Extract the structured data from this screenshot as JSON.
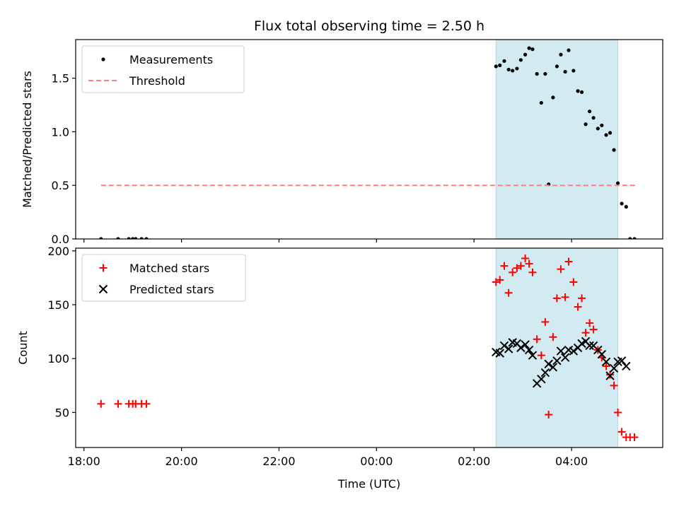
{
  "chart_data": {
    "type": "scatter",
    "title": "Flux total observing time = 2.50 h",
    "xlabel": "Time (UTC)",
    "x_unit": "hours since 00:00 UTC",
    "xlim": [
      -6.17,
      5.87
    ],
    "xticks": [
      {
        "value": -6,
        "label": "18:00"
      },
      {
        "value": -4,
        "label": "20:00"
      },
      {
        "value": -2,
        "label": "22:00"
      },
      {
        "value": 0,
        "label": "00:00"
      },
      {
        "value": 2,
        "label": "02:00"
      },
      {
        "value": 4,
        "label": "04:00"
      }
    ],
    "observing_window": {
      "start": 2.45,
      "end": 4.95,
      "color": "#add8e6"
    },
    "panels": [
      {
        "ylabel": "Matched/Predicted stars",
        "ylim": [
          0,
          1.86
        ],
        "yticks": [
          0.0,
          0.5,
          1.0,
          1.5
        ],
        "ytick_labels": [
          "0.0",
          "0.5",
          "1.0",
          "1.5"
        ],
        "legend_position": "upper-left",
        "series": [
          {
            "name": "Measurements",
            "marker": "dot",
            "color": "#000000",
            "x": [
              -5.65,
              -5.3,
              -5.08,
              -5.0,
              -4.94,
              -4.82,
              -4.72,
              2.45,
              2.53,
              2.62,
              2.71,
              2.79,
              2.88,
              2.96,
              3.05,
              3.13,
              3.2,
              3.29,
              3.38,
              3.46,
              3.53,
              3.62,
              3.7,
              3.78,
              3.87,
              3.94,
              4.04,
              4.13,
              4.21,
              4.29,
              4.37,
              4.45,
              4.54,
              4.62,
              4.71,
              4.79,
              4.87,
              4.95,
              5.03,
              5.12,
              5.2,
              5.29
            ],
            "y": [
              0.0,
              0.0,
              0.0,
              0.0,
              0.0,
              0.0,
              0.0,
              1.61,
              1.62,
              1.66,
              1.58,
              1.57,
              1.59,
              1.67,
              1.72,
              1.78,
              1.77,
              1.54,
              1.27,
              1.54,
              0.51,
              1.32,
              1.61,
              1.72,
              1.56,
              1.76,
              1.57,
              1.38,
              1.37,
              1.07,
              1.19,
              1.13,
              1.03,
              1.06,
              0.97,
              0.99,
              0.83,
              0.52,
              0.33,
              0.3,
              0.0,
              0.0
            ]
          },
          {
            "name": "Threshold",
            "marker": "dashed-line",
            "color": "#ff7f7f",
            "x": [
              -5.65,
              5.3
            ],
            "y": [
              0.5,
              0.5
            ]
          }
        ]
      },
      {
        "ylabel": "Count",
        "ylim": [
          17.5,
          202.5
        ],
        "yticks": [
          50,
          100,
          150,
          200
        ],
        "ytick_labels": [
          "50",
          "100",
          "150",
          "200"
        ],
        "legend_position": "upper-left",
        "series": [
          {
            "name": "Matched stars",
            "marker": "plus",
            "color": "#ff0000",
            "x": [
              -5.65,
              -5.3,
              -5.08,
              -5.0,
              -4.94,
              -4.82,
              -4.72,
              2.45,
              2.53,
              2.62,
              2.71,
              2.79,
              2.88,
              2.96,
              3.05,
              3.13,
              3.2,
              3.29,
              3.38,
              3.46,
              3.53,
              3.62,
              3.7,
              3.78,
              3.87,
              3.94,
              4.04,
              4.13,
              4.21,
              4.29,
              4.37,
              4.45,
              4.54,
              4.62,
              4.71,
              4.79,
              4.87,
              4.95,
              5.03,
              5.12,
              5.2,
              5.29
            ],
            "y": [
              58,
              58,
              58,
              58,
              58,
              58,
              58,
              171,
              173,
              186,
              161,
              180,
              184,
              186,
              193,
              188,
              180,
              118,
              103,
              134,
              48,
              120,
              156,
              183,
              157,
              190,
              171,
              148,
              156,
              124,
              133,
              127,
              108,
              101,
              93,
              85,
              75,
              50,
              32,
              27,
              27,
              27
            ]
          },
          {
            "name": "Predicted stars",
            "marker": "x",
            "color": "#000000",
            "x": [
              2.45,
              2.53,
              2.62,
              2.71,
              2.79,
              2.88,
              2.96,
              3.05,
              3.13,
              3.2,
              3.29,
              3.38,
              3.46,
              3.53,
              3.62,
              3.7,
              3.78,
              3.87,
              3.94,
              4.04,
              4.13,
              4.21,
              4.29,
              4.37,
              4.45,
              4.54,
              4.62,
              4.71,
              4.79,
              4.87,
              4.95,
              5.03,
              5.12
            ],
            "y": [
              106,
              105,
              112,
              109,
              115,
              114,
              110,
              113,
              108,
              103,
              77,
              81,
              87,
              95,
              92,
              98,
              107,
              101,
              108,
              107,
              110,
              114,
              116,
              112,
              112,
              108,
              104,
              97,
              84,
              91,
              97,
              98,
              93
            ]
          }
        ]
      }
    ]
  }
}
